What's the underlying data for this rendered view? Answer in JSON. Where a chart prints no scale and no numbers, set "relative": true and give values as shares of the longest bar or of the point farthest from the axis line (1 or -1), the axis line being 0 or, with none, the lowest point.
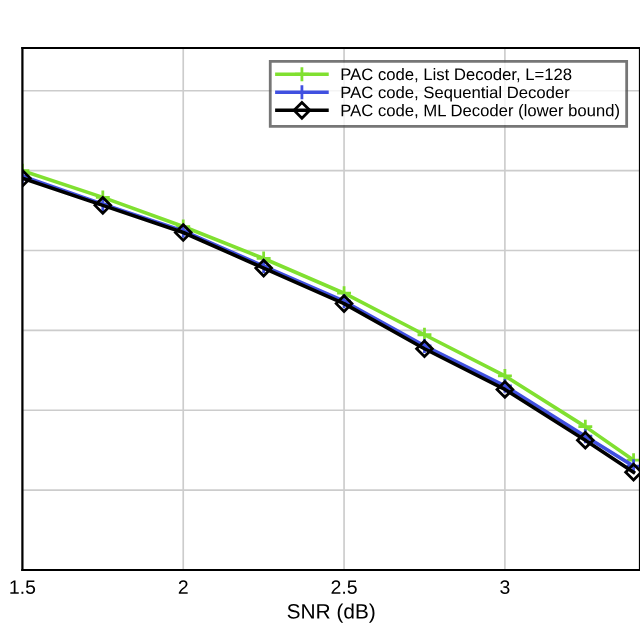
{
  "chart_data": {
    "type": "line",
    "xlabel": "SNR (dB)",
    "relative": true,
    "grid": true,
    "legend": "top right",
    "tick_labels": "x",
    "x": [
      1.5,
      1.75,
      2,
      2.25,
      2.5,
      2.75,
      3,
      3.25,
      3.4
    ],
    "xlim": [
      1.5,
      3.42
    ],
    "xticks": [
      1.5,
      2,
      2.5,
      3
    ],
    "series": [
      {
        "name": "PAC code, List Decoder, L=128",
        "color": "#80e030",
        "marker": "cross",
        "values": [
          1.0,
          0.933,
          0.86,
          0.78,
          0.693,
          0.589,
          0.486,
          0.359,
          0.275
        ]
      },
      {
        "name": "PAC code, Sequential Decoder",
        "color": "#4050e0",
        "marker": "cross",
        "values": [
          0.986,
          0.916,
          0.849,
          0.761,
          0.673,
          0.561,
          0.461,
          0.335,
          0.26
        ]
      },
      {
        "name": "PAC code, ML Decoder (lower bound)",
        "color": "#000000",
        "marker": "diamond",
        "values": [
          0.981,
          0.913,
          0.845,
          0.756,
          0.667,
          0.554,
          0.452,
          0.325,
          0.245
        ]
      }
    ]
  }
}
